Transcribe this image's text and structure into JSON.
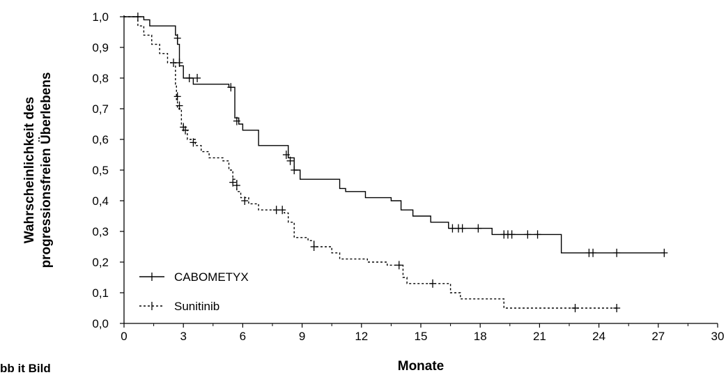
{
  "chart_data": {
    "type": "line",
    "subtype": "kaplan-meier",
    "title": "",
    "xlabel": "Monate",
    "ylabel_lines": [
      "Wahrscheinlichkeit des",
      "progressionsfreien Überlebens"
    ],
    "xlim": [
      0,
      30
    ],
    "ylim": [
      0,
      1
    ],
    "x_ticks": [
      "0",
      "3",
      "6",
      "9",
      "12",
      "15",
      "18",
      "21",
      "24",
      "27",
      "30"
    ],
    "y_ticks": [
      "0,0",
      "0,1",
      "0,2",
      "0,3",
      "0,4",
      "0,5",
      "0,6",
      "0,7",
      "0,8",
      "0,9",
      "1,0"
    ],
    "grid": false,
    "legend_position": "bottom-left",
    "series": [
      {
        "name": "CABOMETYX",
        "style": "solid",
        "color": "#000000",
        "steps": [
          [
            0,
            1.0
          ],
          [
            1.0,
            0.99
          ],
          [
            1.3,
            0.97
          ],
          [
            2.6,
            0.94
          ],
          [
            2.7,
            0.91
          ],
          [
            2.8,
            0.84
          ],
          [
            3.0,
            0.8
          ],
          [
            3.5,
            0.78
          ],
          [
            5.3,
            0.77
          ],
          [
            5.6,
            0.67
          ],
          [
            5.8,
            0.65
          ],
          [
            6.0,
            0.63
          ],
          [
            6.8,
            0.58
          ],
          [
            8.3,
            0.54
          ],
          [
            8.6,
            0.5
          ],
          [
            8.9,
            0.47
          ],
          [
            10.9,
            0.44
          ],
          [
            11.2,
            0.43
          ],
          [
            12.2,
            0.41
          ],
          [
            13.5,
            0.4
          ],
          [
            14.0,
            0.37
          ],
          [
            14.6,
            0.35
          ],
          [
            15.5,
            0.33
          ],
          [
            16.4,
            0.31
          ],
          [
            18.6,
            0.29
          ],
          [
            22.1,
            0.23
          ],
          [
            27.3,
            0.23
          ]
        ],
        "censored": [
          [
            0.7,
            1.0
          ],
          [
            2.7,
            0.93
          ],
          [
            2.8,
            0.85
          ],
          [
            3.3,
            0.8
          ],
          [
            3.7,
            0.8
          ],
          [
            5.4,
            0.77
          ],
          [
            5.7,
            0.66
          ],
          [
            8.2,
            0.55
          ],
          [
            8.4,
            0.53
          ],
          [
            8.6,
            0.5
          ],
          [
            16.6,
            0.31
          ],
          [
            16.9,
            0.31
          ],
          [
            17.1,
            0.31
          ],
          [
            17.9,
            0.31
          ],
          [
            19.2,
            0.29
          ],
          [
            19.4,
            0.29
          ],
          [
            19.6,
            0.29
          ],
          [
            20.4,
            0.29
          ],
          [
            20.9,
            0.29
          ],
          [
            23.5,
            0.23
          ],
          [
            23.7,
            0.23
          ],
          [
            24.9,
            0.23
          ],
          [
            27.3,
            0.23
          ]
        ]
      },
      {
        "name": "Sunitinib",
        "style": "dashed",
        "color": "#000000",
        "steps": [
          [
            0,
            1.0
          ],
          [
            0.7,
            0.97
          ],
          [
            1.0,
            0.94
          ],
          [
            1.4,
            0.91
          ],
          [
            1.8,
            0.88
          ],
          [
            2.2,
            0.85
          ],
          [
            2.6,
            0.78
          ],
          [
            2.65,
            0.73
          ],
          [
            2.7,
            0.7
          ],
          [
            2.9,
            0.65
          ],
          [
            3.0,
            0.63
          ],
          [
            3.2,
            0.6
          ],
          [
            3.6,
            0.58
          ],
          [
            3.9,
            0.56
          ],
          [
            4.3,
            0.54
          ],
          [
            5.0,
            0.53
          ],
          [
            5.3,
            0.5
          ],
          [
            5.5,
            0.47
          ],
          [
            5.7,
            0.43
          ],
          [
            5.9,
            0.41
          ],
          [
            6.3,
            0.39
          ],
          [
            6.8,
            0.37
          ],
          [
            8.1,
            0.36
          ],
          [
            8.3,
            0.33
          ],
          [
            8.6,
            0.28
          ],
          [
            9.3,
            0.27
          ],
          [
            9.6,
            0.25
          ],
          [
            10.5,
            0.23
          ],
          [
            10.9,
            0.21
          ],
          [
            12.3,
            0.2
          ],
          [
            13.3,
            0.19
          ],
          [
            14.1,
            0.15
          ],
          [
            14.3,
            0.13
          ],
          [
            16.0,
            0.13
          ],
          [
            16.5,
            0.1
          ],
          [
            17.0,
            0.08
          ],
          [
            19.2,
            0.05
          ],
          [
            24.9,
            0.05
          ]
        ],
        "censored": [
          [
            2.5,
            0.85
          ],
          [
            2.7,
            0.74
          ],
          [
            2.8,
            0.71
          ],
          [
            3.0,
            0.64
          ],
          [
            3.1,
            0.63
          ],
          [
            3.5,
            0.59
          ],
          [
            5.5,
            0.46
          ],
          [
            5.7,
            0.45
          ],
          [
            6.1,
            0.4
          ],
          [
            7.7,
            0.37
          ],
          [
            8.0,
            0.37
          ],
          [
            9.6,
            0.25
          ],
          [
            13.9,
            0.19
          ],
          [
            15.6,
            0.13
          ],
          [
            22.8,
            0.05
          ],
          [
            24.9,
            0.05
          ]
        ]
      }
    ]
  },
  "footer_cut_text": "bb it Bild"
}
